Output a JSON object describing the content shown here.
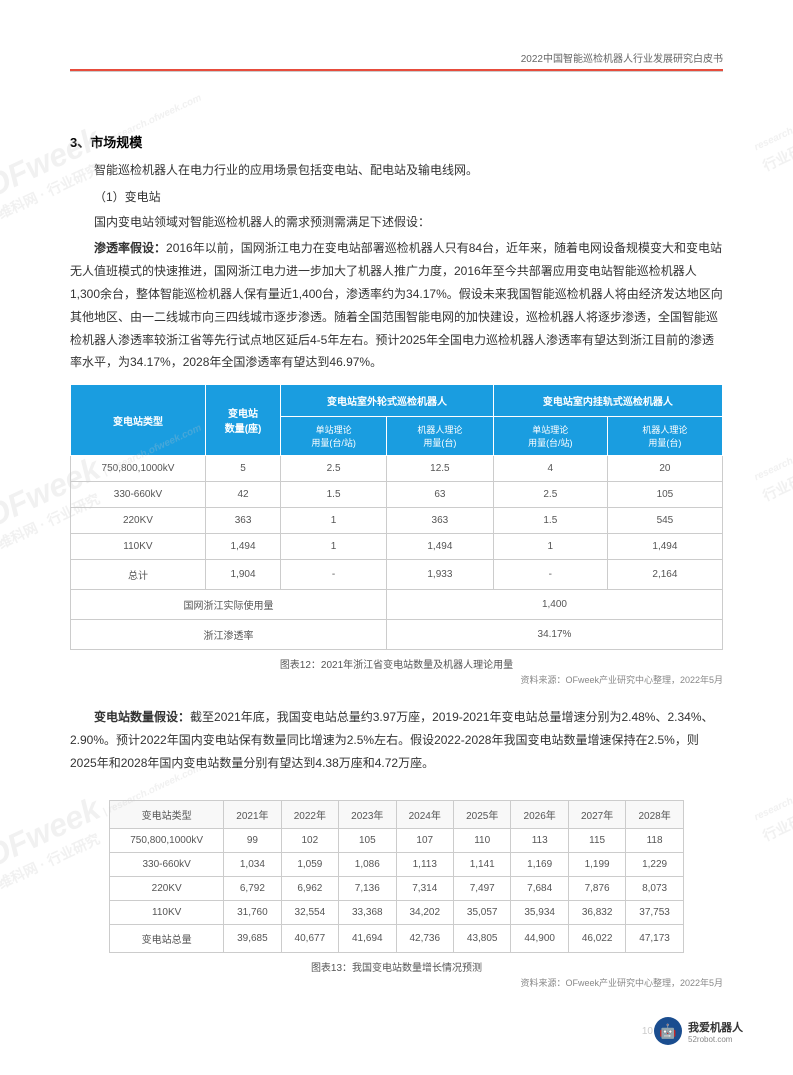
{
  "header": {
    "title": "2022中国智能巡检机器人行业发展研究白皮书"
  },
  "watermarks": [
    {
      "main": "OFweek",
      "sub": "维科网 · 行业研究",
      "url": "research.ofweek.com"
    }
  ],
  "section": {
    "heading": "3、市场规模",
    "intro": "智能巡检机器人在电力行业的应用场景包括变电站、配电站及输电线网。",
    "subheading": "（1）变电站",
    "para1": "国内变电站领域对智能巡检机器人的需求预测需满足下述假设：",
    "para2_lead": "渗透率假设：",
    "para2": "2016年以前，国网浙江电力在变电站部署巡检机器人只有84台，近年来，随着电网设备规模变大和变电站无人值班模式的快速推进，国网浙江电力进一步加大了机器人推广力度，2016年至今共部署应用变电站智能巡检机器人1,300余台，整体智能巡检机器人保有量近1,400台，渗透率约为34.17%。假设未来我国智能巡检机器人将由经济发达地区向其他地区、由一二线城市向三四线城市逐步渗透。随着全国范围智能电网的加快建设，巡检机器人将逐步渗透，全国智能巡检机器人渗透率较浙江省等先行试点地区延后4-5年左右。预计2025年全国电力巡检机器人渗透率有望达到浙江目前的渗透率水平，为34.17%，2028年全国渗透率有望达到46.97%。"
  },
  "table1": {
    "headers": {
      "col1": "变电站类型",
      "col2": "变电站\n数量(座)",
      "group1": "变电站室外轮式巡检机器人",
      "group1_sub1": "单站理论\n用量(台/站)",
      "group1_sub2": "机器人理论\n用量(台)",
      "group2": "变电站室内挂轨式巡检机器人",
      "group2_sub1": "单站理论\n用量(台/站)",
      "group2_sub2": "机器人理论\n用量(台)"
    },
    "rows": [
      [
        "750,800,1000kV",
        "5",
        "2.5",
        "12.5",
        "4",
        "20"
      ],
      [
        "330-660kV",
        "42",
        "1.5",
        "63",
        "2.5",
        "105"
      ],
      [
        "220KV",
        "363",
        "1",
        "363",
        "1.5",
        "545"
      ],
      [
        "110KV",
        "1,494",
        "1",
        "1,494",
        "1",
        "1,494"
      ],
      [
        "总计",
        "1,904",
        "-",
        "1,933",
        "-",
        "2,164"
      ],
      [
        "国网浙江实际使用量",
        "",
        "",
        "1,400",
        "",
        ""
      ],
      [
        "浙江渗透率",
        "",
        "",
        "34.17%",
        "",
        ""
      ]
    ],
    "caption": "图表12：2021年浙江省变电站数量及机器人理论用量",
    "source": "资料来源：OFweek产业研究中心整理，2022年5月"
  },
  "para3_lead": "变电站数量假设：",
  "para3": "截至2021年底，我国变电站总量约3.97万座，2019-2021年变电站总量增速分别为2.48%、2.34%、2.90%。预计2022年国内变电站保有数量同比增速为2.5%左右。假设2022-2028年我国变电站数量增速保持在2.5%，则2025年和2028年国内变电站数量分别有望达到4.38万座和4.72万座。",
  "table2": {
    "headers": [
      "变电站类型",
      "2021年",
      "2022年",
      "2023年",
      "2024年",
      "2025年",
      "2026年",
      "2027年",
      "2028年"
    ],
    "rows": [
      [
        "750,800,1000kV",
        "99",
        "102",
        "105",
        "107",
        "110",
        "113",
        "115",
        "118"
      ],
      [
        "330-660kV",
        "1,034",
        "1,059",
        "1,086",
        "1,113",
        "1,141",
        "1,169",
        "1,199",
        "1,229"
      ],
      [
        "220KV",
        "6,792",
        "6,962",
        "7,136",
        "7,314",
        "7,497",
        "7,684",
        "7,876",
        "8,073"
      ],
      [
        "110KV",
        "31,760",
        "32,554",
        "33,368",
        "34,202",
        "35,057",
        "35,934",
        "36,832",
        "37,753"
      ],
      [
        "变电站总量",
        "39,685",
        "40,677",
        "41,694",
        "42,736",
        "43,805",
        "44,900",
        "46,022",
        "47,173"
      ]
    ],
    "caption": "图表13：我国变电站数量增长情况预测",
    "source": "资料来源：OFweek产业研究中心整理，2022年5月"
  },
  "footer": {
    "logo_text": "我爱机器人",
    "logo_sub": "52robot.com",
    "page_num": "10"
  }
}
